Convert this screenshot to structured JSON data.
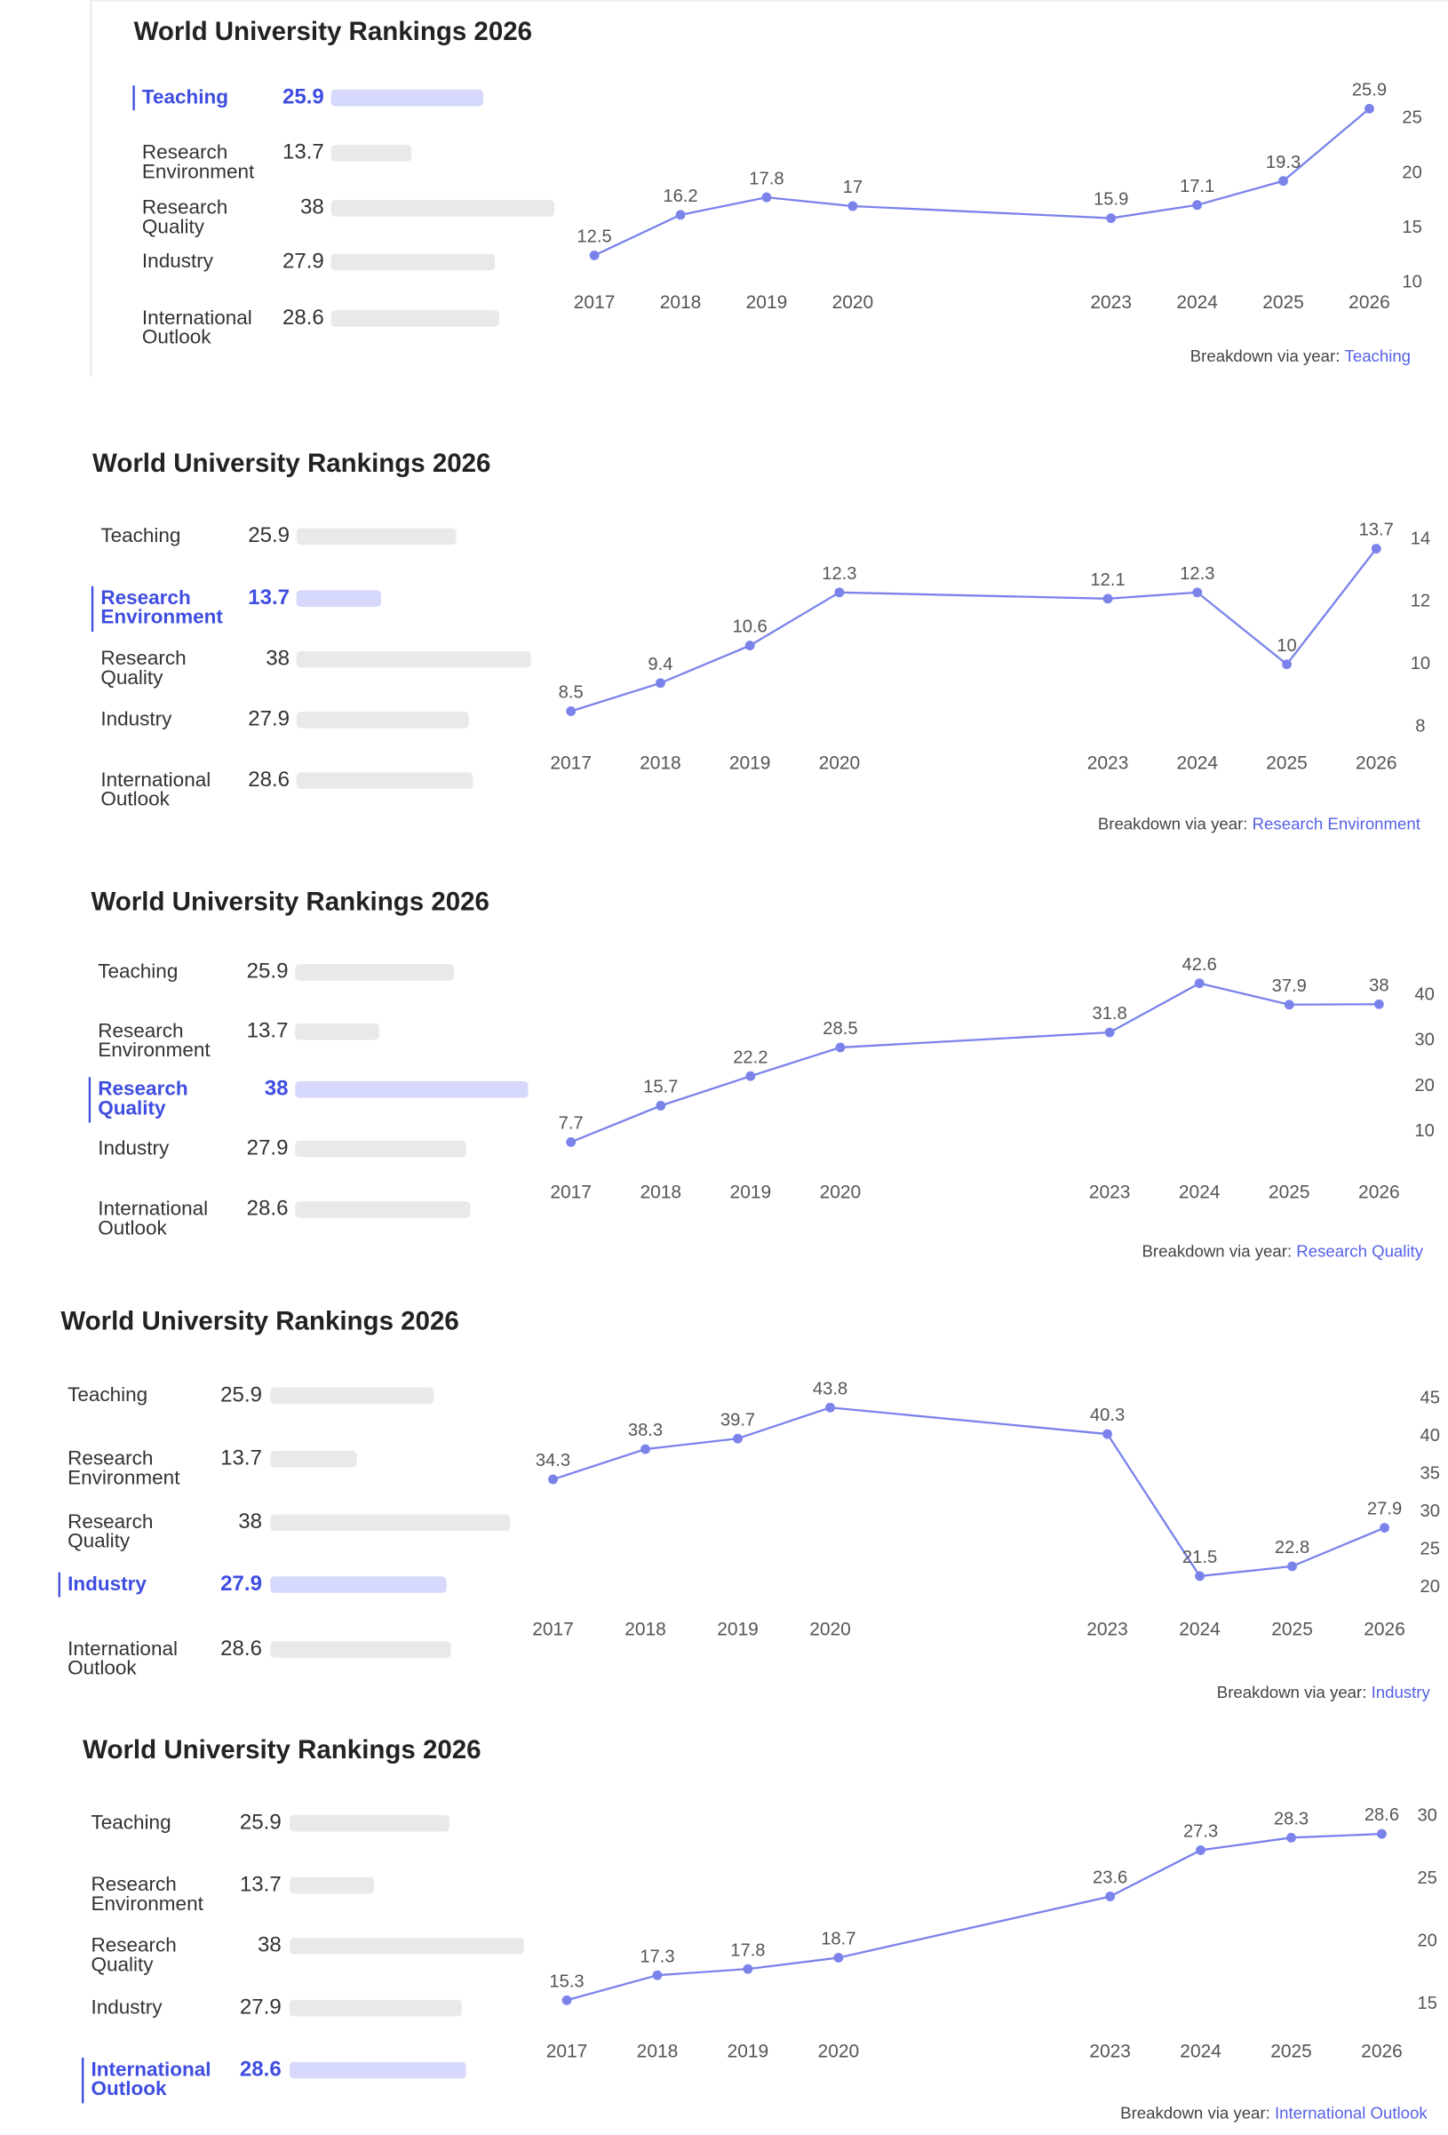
{
  "chart_data": [
    {
      "type": "line",
      "title": "World University Rankings 2026",
      "metrics": {
        "categories": [
          "Teaching",
          "Research Environment",
          "Research Quality",
          "Industry",
          "International Outlook"
        ],
        "values": [
          25.9,
          13.7,
          38,
          27.9,
          28.6
        ],
        "color": "#e9e9e9",
        "highlight_color": "#d6d9fb"
      },
      "x": [
        2017,
        2018,
        2019,
        2020,
        2023,
        2024,
        2025,
        2026
      ],
      "xlim": [
        2017,
        2026
      ],
      "xticks": [
        2017,
        2018,
        2019,
        2020,
        2023,
        2024,
        2025,
        2026
      ],
      "values": [
        12.5,
        16.2,
        17.8,
        17,
        15.9,
        17.1,
        19.3,
        25.9
      ],
      "color": "#7b83eb",
      "ylim": [
        10,
        26
      ],
      "yticks": [
        10,
        15,
        20,
        25
      ],
      "footer": {
        "text": "Breakdown via year:",
        "metric": "Teaching"
      }
    },
    {
      "type": "line",
      "title": "World University Rankings 2026",
      "metrics": {
        "categories": [
          "Teaching",
          "Research Environment",
          "Research Quality",
          "Industry",
          "International Outlook"
        ],
        "values": [
          25.9,
          13.7,
          38,
          27.9,
          28.6
        ],
        "color": "#e9e9e9",
        "highlight_color": "#d6d9fb"
      },
      "x": [
        2017,
        2018,
        2019,
        2020,
        2023,
        2024,
        2025,
        2026
      ],
      "xlim": [
        2017,
        2026
      ],
      "xticks": [
        2017,
        2018,
        2019,
        2020,
        2023,
        2024,
        2025,
        2026
      ],
      "values": [
        8.5,
        9.4,
        10.6,
        12.3,
        12.1,
        12.3,
        10,
        13.7
      ],
      "color": "#7b83eb",
      "ylim": [
        8,
        14
      ],
      "yticks": [
        8,
        10,
        12,
        14
      ],
      "footer": {
        "text": "Breakdown via year:",
        "metric": "Research Environment"
      }
    },
    {
      "type": "line",
      "title": "World University Rankings 2026",
      "metrics": {
        "categories": [
          "Teaching",
          "Research Environment",
          "Research Quality",
          "Industry",
          "International Outlook"
        ],
        "values": [
          25.9,
          13.7,
          38,
          27.9,
          28.6
        ],
        "color": "#e9e9e9",
        "highlight_color": "#d6d9fb"
      },
      "x": [
        2017,
        2018,
        2019,
        2020,
        2023,
        2024,
        2025,
        2026
      ],
      "xlim": [
        2017,
        2026
      ],
      "xticks": [
        2017,
        2018,
        2019,
        2020,
        2023,
        2024,
        2025,
        2026
      ],
      "values": [
        7.7,
        15.7,
        22.2,
        28.5,
        31.8,
        42.6,
        37.9,
        38
      ],
      "color": "#7b83eb",
      "ylim": [
        5,
        45
      ],
      "yticks": [
        10,
        20,
        30,
        40
      ],
      "footer": {
        "text": "Breakdown via year:",
        "metric": "Research Quality"
      }
    },
    {
      "type": "line",
      "title": "World University Rankings 2026",
      "metrics": {
        "categories": [
          "Teaching",
          "Research Environment",
          "Research Quality",
          "Industry",
          "International Outlook"
        ],
        "values": [
          25.9,
          13.7,
          38,
          27.9,
          28.6
        ],
        "color": "#e9e9e9",
        "highlight_color": "#d6d9fb"
      },
      "x": [
        2017,
        2018,
        2019,
        2020,
        2023,
        2024,
        2025,
        2026
      ],
      "xlim": [
        2017,
        2026
      ],
      "xticks": [
        2017,
        2018,
        2019,
        2020,
        2023,
        2024,
        2025,
        2026
      ],
      "values": [
        34.3,
        38.3,
        39.7,
        43.8,
        40.3,
        21.5,
        22.8,
        27.9
      ],
      "color": "#7b83eb",
      "ylim": [
        20,
        45
      ],
      "yticks": [
        20,
        25,
        30,
        35,
        40,
        45
      ],
      "footer": {
        "text": "Breakdown via year:",
        "metric": "Industry"
      }
    },
    {
      "type": "line",
      "title": "World University Rankings 2026",
      "metrics": {
        "categories": [
          "Teaching",
          "Research Environment",
          "Research Quality",
          "Industry",
          "International Outlook"
        ],
        "values": [
          25.9,
          13.7,
          38,
          27.9,
          28.6
        ],
        "color": "#e9e9e9",
        "highlight_color": "#d6d9fb"
      },
      "x": [
        2017,
        2018,
        2019,
        2020,
        2023,
        2024,
        2025,
        2026
      ],
      "xlim": [
        2017,
        2026
      ],
      "xticks": [
        2017,
        2018,
        2019,
        2020,
        2023,
        2024,
        2025,
        2026
      ],
      "values": [
        15.3,
        17.3,
        17.8,
        18.7,
        23.6,
        27.3,
        28.3,
        28.6
      ],
      "color": "#7b83eb",
      "ylim": [
        15,
        30
      ],
      "yticks": [
        15,
        20,
        25,
        30
      ],
      "footer": {
        "text": "Breakdown via year:",
        "metric": "International Outlook"
      }
    }
  ]
}
